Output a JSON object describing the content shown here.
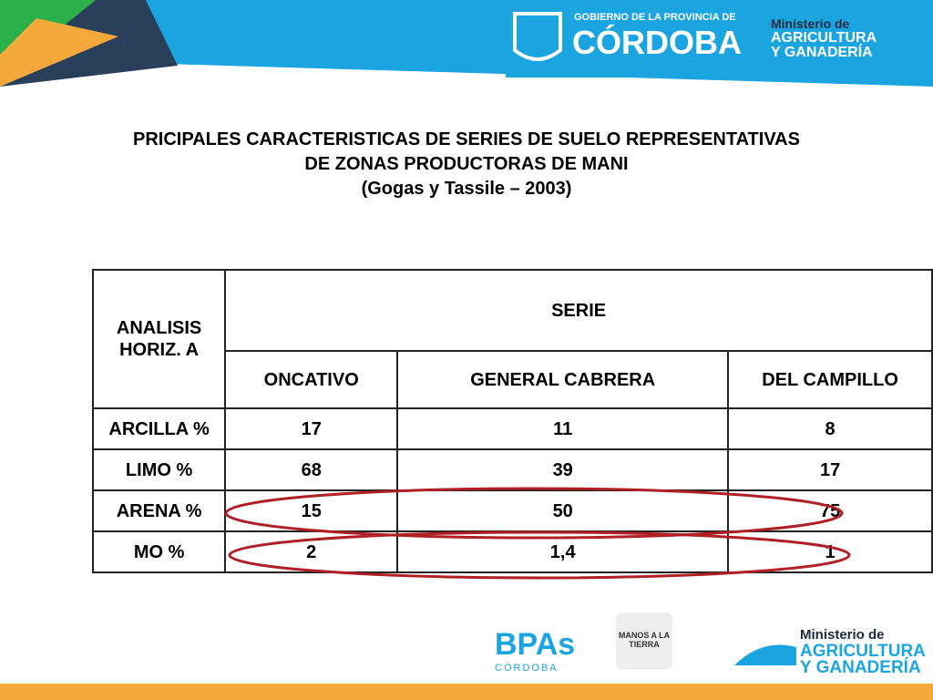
{
  "header": {
    "gov_small": "GOBIERNO DE LA PROVINCIA DE",
    "gov_big": "CÓRDOBA",
    "ministry": [
      "Ministerio de",
      "AGRICULTURA",
      "Y GANADERÍA"
    ]
  },
  "title": [
    "PRICIPALES CARACTERISTICAS DE SERIES DE SUELO REPRESENTATIVAS",
    "DE ZONAS PRODUCTORAS DE MANI",
    "(Gogas y Tassile – 2003)"
  ],
  "table": {
    "corner": "ANALISIS HORIZ.  A",
    "group": "SERIE",
    "columns": [
      "ONCATIVO",
      "GENERAL CABRERA",
      "DEL CAMPILLO"
    ],
    "rows": [
      [
        "ARCILLA %",
        "17",
        "11",
        "8"
      ],
      [
        "LIMO %",
        "68",
        "39",
        "17"
      ],
      [
        "ARENA %",
        "15",
        "50",
        "75"
      ],
      [
        "MO %",
        "2",
        "1,4",
        "1"
      ]
    ]
  },
  "footer": {
    "bpas": "BPAs",
    "bpas_sub": "CÓRDOBA",
    "manos": "MANOS A LA TIERRA",
    "ministry": [
      "Ministerio de",
      "AGRICULTURA",
      "Y GANADERÍA"
    ]
  }
}
